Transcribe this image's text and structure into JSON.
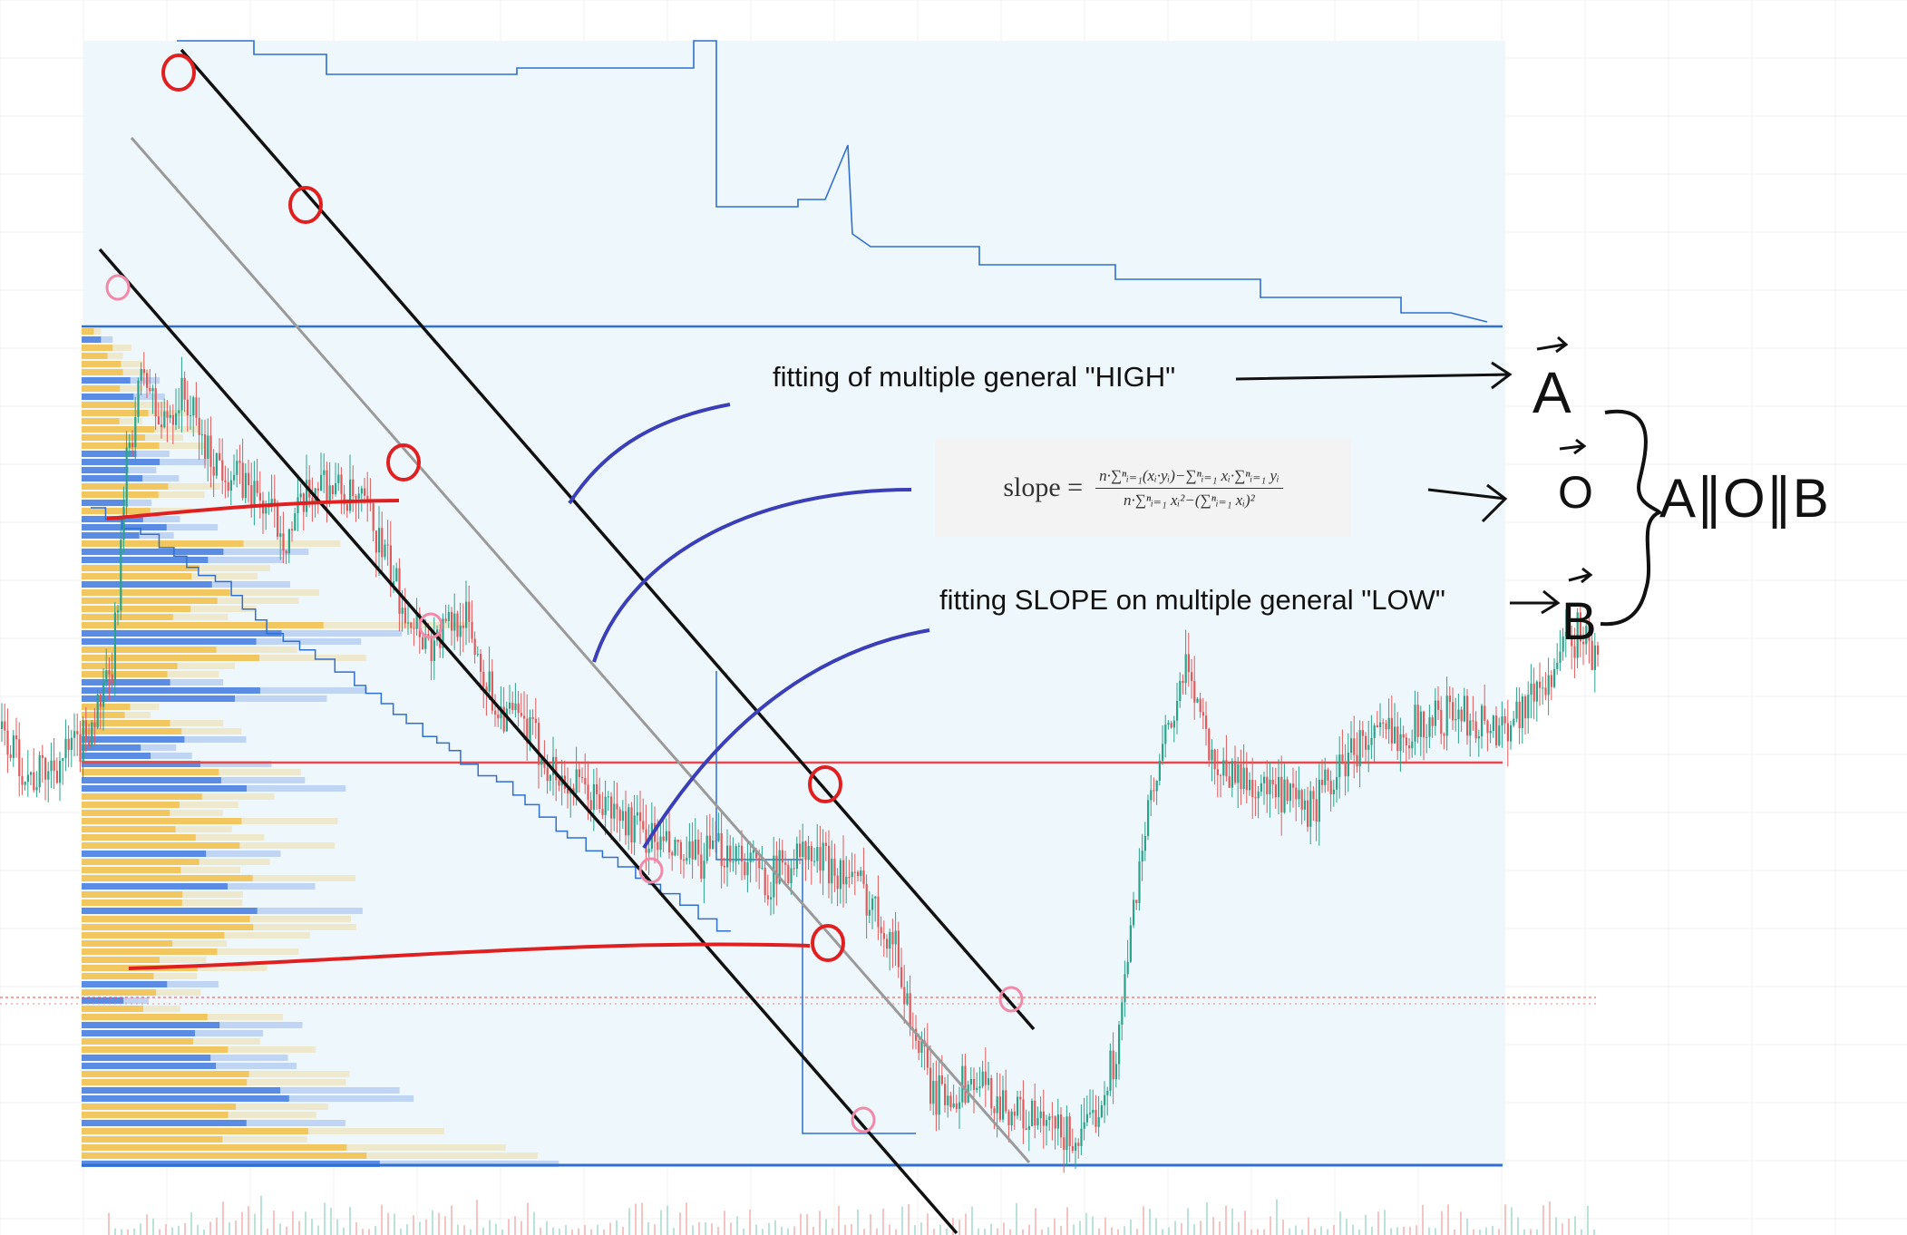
{
  "chart_data": {
    "type": "line",
    "title": "",
    "xlabel": "",
    "ylabel": "",
    "grid": true,
    "legend": "none",
    "levels": {
      "upper": 100,
      "middle": 48,
      "lower": 0
    },
    "price_series": [
      [
        0.0,
        52
      ],
      [
        0.02,
        46
      ],
      [
        0.05,
        50
      ],
      [
        0.07,
        58
      ],
      [
        0.08,
        85
      ],
      [
        0.09,
        95
      ],
      [
        0.1,
        88
      ],
      [
        0.115,
        92
      ],
      [
        0.13,
        85
      ],
      [
        0.16,
        80
      ],
      [
        0.18,
        75
      ],
      [
        0.2,
        82
      ],
      [
        0.23,
        78
      ],
      [
        0.25,
        68
      ],
      [
        0.27,
        62
      ],
      [
        0.29,
        66
      ],
      [
        0.31,
        55
      ],
      [
        0.33,
        52
      ],
      [
        0.35,
        46
      ],
      [
        0.37,
        44
      ],
      [
        0.4,
        40
      ],
      [
        0.43,
        36
      ],
      [
        0.46,
        38
      ],
      [
        0.48,
        34
      ],
      [
        0.5,
        37
      ],
      [
        0.52,
        36
      ],
      [
        0.54,
        33
      ],
      [
        0.56,
        27
      ],
      [
        0.57,
        18
      ],
      [
        0.585,
        8
      ],
      [
        0.61,
        10
      ],
      [
        0.64,
        6
      ],
      [
        0.66,
        4
      ],
      [
        0.68,
        3
      ],
      [
        0.7,
        14
      ],
      [
        0.715,
        38
      ],
      [
        0.73,
        50
      ],
      [
        0.745,
        60
      ],
      [
        0.76,
        48
      ],
      [
        0.78,
        46
      ],
      [
        0.82,
        42
      ],
      [
        0.85,
        50
      ],
      [
        0.88,
        52
      ],
      [
        0.91,
        54
      ],
      [
        0.94,
        52
      ],
      [
        0.97,
        58
      ],
      [
        0.99,
        64
      ],
      [
        1.0,
        60
      ]
    ],
    "band_lines": [
      "upper",
      "middle",
      "lower"
    ],
    "channel_slope_lines": 4
  },
  "annotations": {
    "high_label": "fitting of multiple general \"HIGH\"",
    "low_label": "fitting SLOPE on multiple general \"LOW\"",
    "formula": {
      "lhs": "slope =",
      "numerator": "n·∑ⁿᵢ₌₁(xᵢ·yᵢ)−∑ⁿᵢ₌₁ xᵢ·∑ⁿᵢ₌₁ yᵢ",
      "denominator": "n·∑ⁿᵢ₌₁ xᵢ²−(∑ⁿᵢ₌₁ xᵢ)²"
    },
    "handwriting": {
      "vec_a": "A",
      "vec_o": "O",
      "vec_b": "B",
      "parallel": "A∥O∥B"
    }
  },
  "colors": {
    "background_zone": "#eef7fc",
    "blue_line": "#2f6fd0",
    "red_line": "#e64a4a",
    "channel_black": "#111111",
    "mid_gray": "#9a9a9a",
    "ink_red": "#e02020",
    "ink_blue": "#3a3fb8",
    "circle_pink": "#f08aa8",
    "candle_up": "#2aa38a",
    "candle_down": "#e05a5a",
    "volume_yellow": "#f2c14e",
    "volume_blue": "#4a7fe0"
  }
}
